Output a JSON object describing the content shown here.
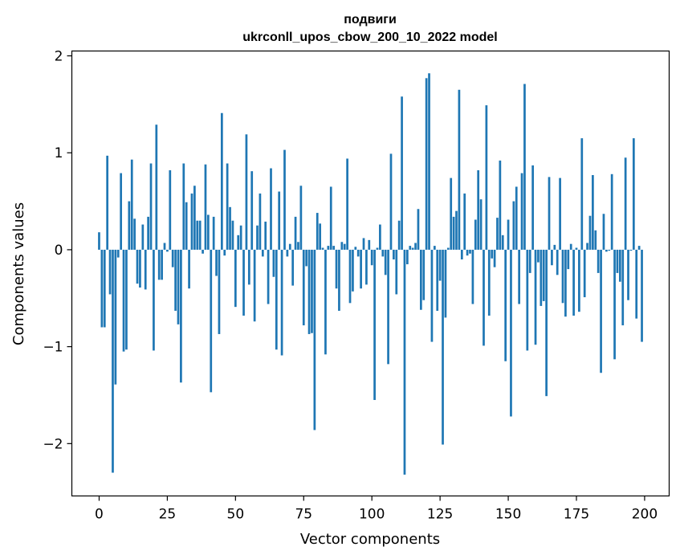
{
  "chart_data": {
    "type": "bar",
    "title": "подвиги",
    "subtitle": "ukrconll_upos_cbow_200_10_2022 model",
    "xlabel": "Vector components",
    "ylabel": "Components values",
    "xlim": [
      -10,
      209
    ],
    "ylim": [
      -2.54,
      2.05
    ],
    "xticks": [
      0,
      25,
      50,
      75,
      100,
      125,
      150,
      175,
      200
    ],
    "yticks": [
      -2,
      -1,
      0,
      1,
      2
    ],
    "xtick_labels": [
      "0",
      "25",
      "50",
      "75",
      "100",
      "125",
      "150",
      "175",
      "200"
    ],
    "ytick_labels": [
      "−2",
      "−1",
      "0",
      "1",
      "2"
    ],
    "grid": false,
    "bar_color": "#1f77b4",
    "x": [
      0,
      1,
      2,
      3,
      4,
      5,
      6,
      7,
      8,
      9,
      10,
      11,
      12,
      13,
      14,
      15,
      16,
      17,
      18,
      19,
      20,
      21,
      22,
      23,
      24,
      25,
      26,
      27,
      28,
      29,
      30,
      31,
      32,
      33,
      34,
      35,
      36,
      37,
      38,
      39,
      40,
      41,
      42,
      43,
      44,
      45,
      46,
      47,
      48,
      49,
      50,
      51,
      52,
      53,
      54,
      55,
      56,
      57,
      58,
      59,
      60,
      61,
      62,
      63,
      64,
      65,
      66,
      67,
      68,
      69,
      70,
      71,
      72,
      73,
      74,
      75,
      76,
      77,
      78,
      79,
      80,
      81,
      82,
      83,
      84,
      85,
      86,
      87,
      88,
      89,
      90,
      91,
      92,
      93,
      94,
      95,
      96,
      97,
      98,
      99,
      100,
      101,
      102,
      103,
      104,
      105,
      106,
      107,
      108,
      109,
      110,
      111,
      112,
      113,
      114,
      115,
      116,
      117,
      118,
      119,
      120,
      121,
      122,
      123,
      124,
      125,
      126,
      127,
      128,
      129,
      130,
      131,
      132,
      133,
      134,
      135,
      136,
      137,
      138,
      139,
      140,
      141,
      142,
      143,
      144,
      145,
      146,
      147,
      148,
      149,
      150,
      151,
      152,
      153,
      154,
      155,
      156,
      157,
      158,
      159,
      160,
      161,
      162,
      163,
      164,
      165,
      166,
      167,
      168,
      169,
      170,
      171,
      172,
      173,
      174,
      175,
      176,
      177,
      178,
      179,
      180,
      181,
      182,
      183,
      184,
      185,
      186,
      187,
      188,
      189,
      190,
      191,
      192,
      193,
      194,
      195,
      196,
      197,
      198,
      199
    ],
    "values": [
      0.18,
      -0.8,
      -0.8,
      0.97,
      -0.46,
      -2.3,
      -1.39,
      -0.08,
      0.79,
      -1.05,
      -1.03,
      0.5,
      0.93,
      0.32,
      -0.35,
      -0.39,
      0.26,
      -0.41,
      0.34,
      0.89,
      -1.04,
      1.29,
      -0.31,
      -0.31,
      0.07,
      -0.02,
      0.82,
      -0.18,
      -0.63,
      -0.77,
      -1.37,
      0.89,
      0.49,
      -0.4,
      0.58,
      0.66,
      0.3,
      0.3,
      -0.04,
      0.88,
      0.36,
      -1.47,
      0.34,
      -0.27,
      -0.87,
      1.41,
      -0.06,
      0.89,
      0.44,
      0.3,
      -0.59,
      0.15,
      0.25,
      -0.68,
      1.19,
      -0.36,
      0.81,
      -0.74,
      0.25,
      0.58,
      -0.07,
      0.29,
      -0.56,
      0.84,
      -0.28,
      -1.03,
      0.6,
      -1.09,
      1.03,
      -0.07,
      0.06,
      -0.37,
      0.34,
      0.08,
      0.66,
      -0.78,
      -0.17,
      -0.87,
      -0.86,
      -1.86,
      0.38,
      0.27,
      0.02,
      -1.08,
      0.04,
      0.65,
      0.04,
      -0.4,
      -0.63,
      0.08,
      0.06,
      0.94,
      -0.55,
      -0.43,
      0.03,
      -0.07,
      -0.4,
      0.12,
      -0.36,
      0.1,
      -0.16,
      -1.55,
      0.02,
      0.26,
      -0.07,
      -0.26,
      -1.18,
      0.99,
      -0.1,
      -0.46,
      0.3,
      1.58,
      -2.32,
      -0.15,
      0.04,
      0.02,
      0.07,
      0.42,
      -0.62,
      -0.52,
      1.77,
      1.82,
      -0.95,
      0.04,
      -0.63,
      -0.32,
      -2.01,
      -0.7,
      0.02,
      0.74,
      0.34,
      0.4,
      1.65,
      -0.1,
      0.58,
      -0.06,
      -0.04,
      -0.56,
      0.31,
      0.82,
      0.52,
      -0.99,
      1.49,
      -0.68,
      -0.09,
      -0.18,
      0.33,
      0.92,
      0.15,
      -1.15,
      0.31,
      -1.72,
      0.5,
      0.65,
      -0.56,
      0.79,
      1.71,
      -1.04,
      -0.24,
      0.87,
      -0.98,
      -0.13,
      -0.58,
      -0.53,
      -1.51,
      0.75,
      -0.16,
      0.05,
      -0.26,
      0.74,
      -0.55,
      -0.69,
      -0.2,
      0.06,
      -0.68,
      0.02,
      -0.64,
      1.15,
      -0.49,
      0.07,
      0.35,
      0.77,
      0.2,
      -0.24,
      -1.27,
      0.37,
      -0.02,
      -0.01,
      0.78,
      -1.13,
      -0.24,
      -0.33,
      -0.78,
      0.95,
      -0.52,
      -0.01,
      1.15,
      -0.71,
      0.04,
      -0.95
    ]
  }
}
